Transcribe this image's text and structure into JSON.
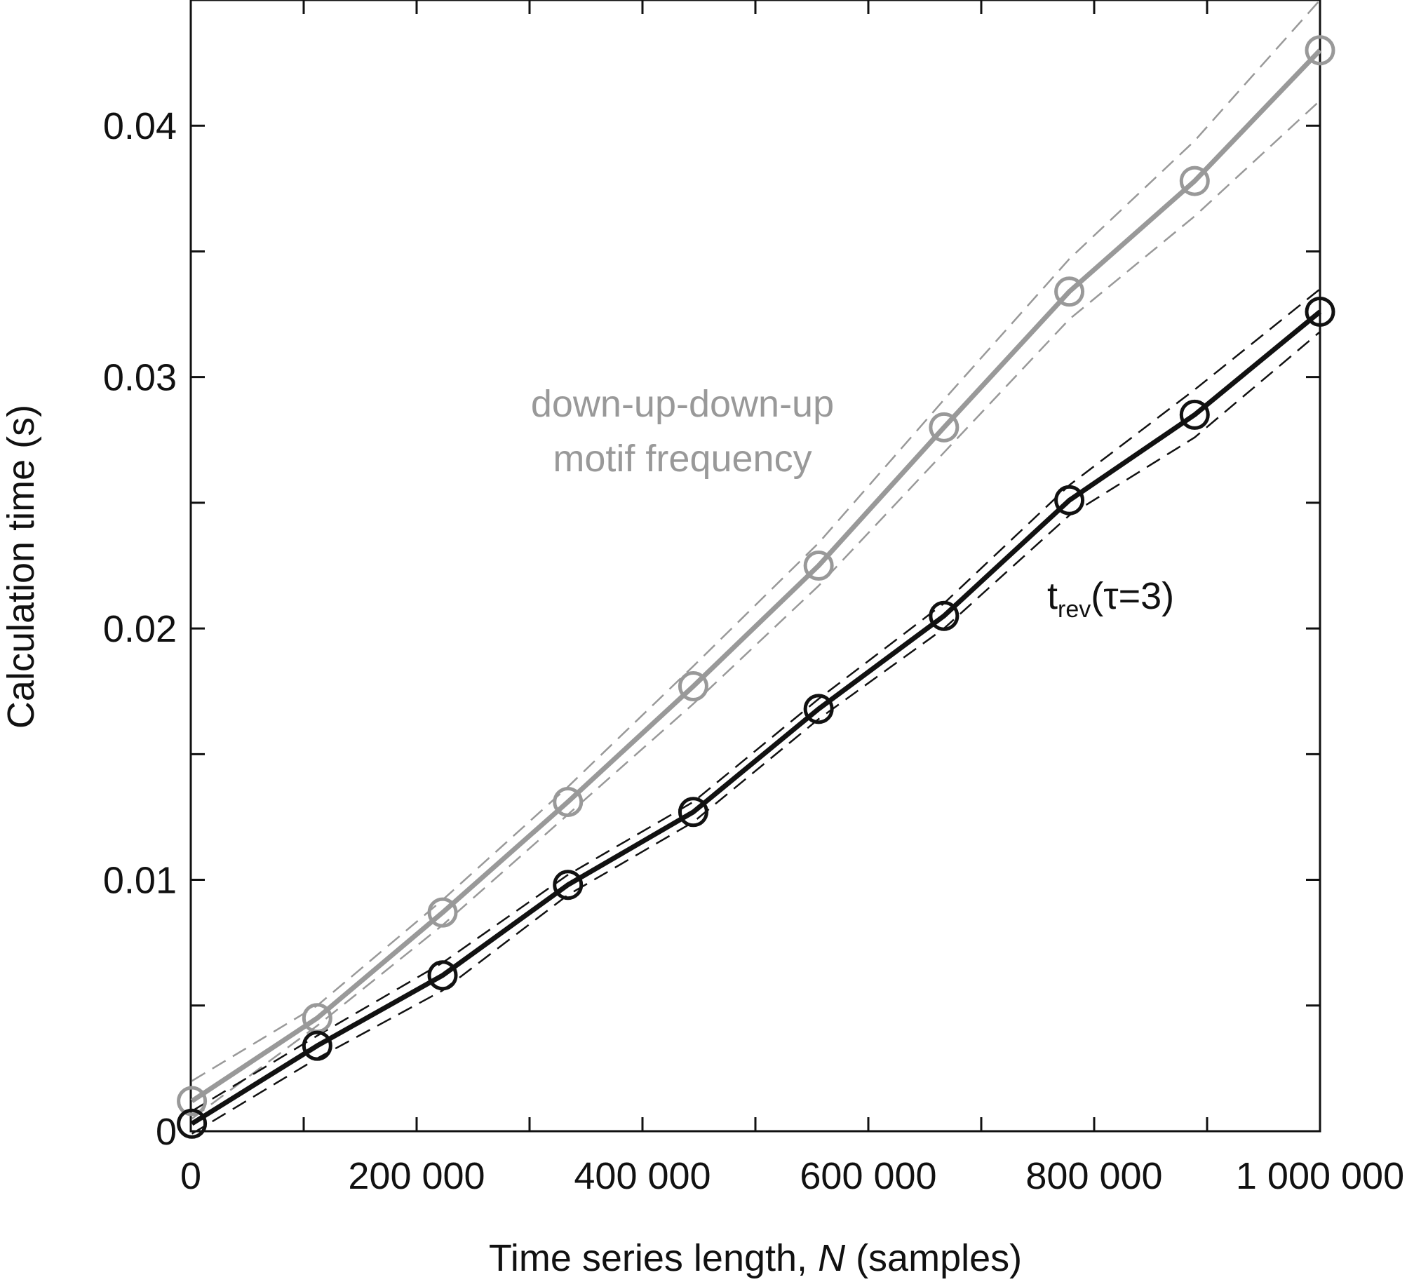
{
  "chart_data": {
    "type": "line",
    "title": "",
    "xlabel": {
      "main": "Time series length, ",
      "var": "N",
      "unit": " (samples)"
    },
    "ylabel": "Calculation time (s)",
    "xlim": [
      0,
      1000000
    ],
    "ylim": [
      0,
      0.045
    ],
    "x_ticks": [
      0,
      200000,
      400000,
      600000,
      800000,
      1000000
    ],
    "x_tick_labels": [
      "0",
      "200 000",
      "400 000",
      "600 000",
      "800 000",
      "1 000 000"
    ],
    "x_minor_ticks": [
      100000,
      300000,
      500000,
      700000,
      900000
    ],
    "y_ticks": [
      0,
      0.01,
      0.02,
      0.03,
      0.04
    ],
    "y_tick_labels": [
      "0",
      "0.01",
      "0.02",
      "0.03",
      "0.04"
    ],
    "y_minor_ticks": [
      0.005,
      0.015,
      0.025,
      0.035
    ],
    "grid": false,
    "legend": "none",
    "x": [
      1000,
      112000,
      223000,
      334000,
      445000,
      556000,
      667000,
      778000,
      889000,
      1000000
    ],
    "series": [
      {
        "label": {
          "lines": [
            "down-up-down-up",
            "motif frequency"
          ]
        },
        "color": "#999999",
        "marker": "circle",
        "values": [
          0.0012,
          0.0045,
          0.0087,
          0.0131,
          0.0177,
          0.0225,
          0.028,
          0.0334,
          0.0378,
          0.043
        ],
        "band_upper": [
          0.002,
          0.005,
          0.0092,
          0.0137,
          0.0185,
          0.0234,
          0.0291,
          0.0347,
          0.0394,
          0.045
        ],
        "band_lower": [
          0.0005,
          0.0042,
          0.0082,
          0.0126,
          0.017,
          0.0217,
          0.027,
          0.0323,
          0.0364,
          0.041
        ]
      },
      {
        "label": {
          "lines": [
            "t",
            "rev",
            "(τ=3)"
          ]
        },
        "color": "#111111",
        "marker": "circle",
        "values": [
          0.0003,
          0.0034,
          0.0062,
          0.0098,
          0.0127,
          0.0168,
          0.0205,
          0.0251,
          0.0285,
          0.0326
        ],
        "band_upper": [
          0.0008,
          0.0038,
          0.0067,
          0.0102,
          0.0131,
          0.0172,
          0.021,
          0.0257,
          0.0295,
          0.0335
        ],
        "band_lower": [
          -0.0001,
          0.0029,
          0.0056,
          0.0094,
          0.0123,
          0.0164,
          0.02,
          0.0245,
          0.0276,
          0.0318
        ]
      }
    ]
  }
}
